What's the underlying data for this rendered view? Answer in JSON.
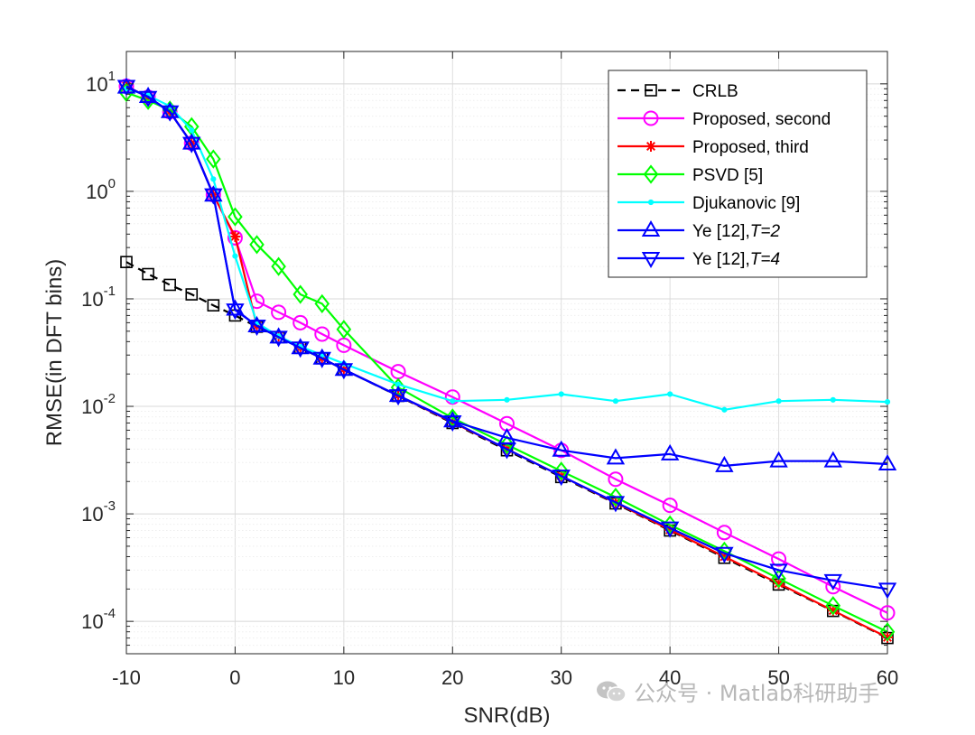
{
  "chart_data": {
    "type": "line",
    "xlabel": "SNR(dB)",
    "ylabel": "RMSE(in DFT bins)",
    "xlim": [
      -10,
      60
    ],
    "ylim": [
      5e-05,
      20
    ],
    "yscale": "log",
    "grid": true,
    "legend_position": "top-right",
    "x_ticks": [
      -10,
      0,
      10,
      20,
      30,
      40,
      50,
      60
    ],
    "x_tick_labels": [
      "-10",
      "0",
      "10",
      "20",
      "30",
      "40",
      "50",
      "60"
    ],
    "y_ticks": [
      0.0001,
      0.001,
      0.01,
      0.1,
      1,
      10
    ],
    "y_tick_labels": [
      {
        "base": "10",
        "exp": "-4"
      },
      {
        "base": "10",
        "exp": "-3"
      },
      {
        "base": "10",
        "exp": "-2"
      },
      {
        "base": "10",
        "exp": "-1"
      },
      {
        "base": "10",
        "exp": "0"
      },
      {
        "base": "10",
        "exp": "1"
      }
    ],
    "series": [
      {
        "name": "CRLB",
        "color": "#000000",
        "dash": true,
        "marker": "square",
        "x": [
          -10,
          -8,
          -6,
          -4,
          -2,
          0,
          2,
          4,
          6,
          8,
          10,
          15,
          20,
          25,
          30,
          35,
          40,
          45,
          50,
          55,
          60
        ],
        "y": [
          0.22,
          0.17,
          0.135,
          0.11,
          0.087,
          0.07,
          0.055,
          0.044,
          0.035,
          0.028,
          0.022,
          0.0125,
          0.007,
          0.0039,
          0.0022,
          0.00125,
          0.0007,
          0.00039,
          0.00022,
          0.000125,
          7e-05
        ]
      },
      {
        "name": "Proposed, second",
        "color": "#ff00ff",
        "dash": false,
        "marker": "circle",
        "x": [
          -10,
          -8,
          -6,
          -4,
          -2,
          0,
          2,
          4,
          6,
          8,
          10,
          15,
          20,
          25,
          30,
          35,
          40,
          45,
          50,
          55,
          60
        ],
        "y": [
          9.5,
          7.5,
          5.5,
          2.8,
          0.93,
          0.37,
          0.095,
          0.075,
          0.06,
          0.047,
          0.037,
          0.021,
          0.0122,
          0.0069,
          0.0039,
          0.0021,
          0.0012,
          0.00067,
          0.00038,
          0.00021,
          0.00012
        ]
      },
      {
        "name": "Proposed, third",
        "color": "#ff0000",
        "dash": false,
        "marker": "asterisk",
        "x": [
          -10,
          -8,
          -6,
          -4,
          -2,
          0,
          2,
          4,
          6,
          8,
          10,
          15,
          20,
          25,
          30,
          35,
          40,
          45,
          50,
          55,
          60
        ],
        "y": [
          9.5,
          7.5,
          5.5,
          2.8,
          0.93,
          0.38,
          0.056,
          0.045,
          0.035,
          0.028,
          0.022,
          0.0126,
          0.0071,
          0.004,
          0.00225,
          0.00127,
          0.00071,
          0.0004,
          0.000225,
          0.000126,
          7.1e-05
        ]
      },
      {
        "name": "PSVD [5]",
        "color": "#00ff00",
        "dash": false,
        "marker": "diamond",
        "x": [
          -10,
          -8,
          -6,
          -4,
          -2,
          0,
          2,
          4,
          6,
          8,
          10,
          15,
          20,
          25,
          30,
          35,
          40,
          45,
          50,
          55,
          60
        ],
        "y": [
          8.3,
          7.0,
          5.7,
          4.0,
          2.0,
          0.58,
          0.32,
          0.2,
          0.11,
          0.09,
          0.052,
          0.015,
          0.0078,
          0.0044,
          0.0025,
          0.00143,
          0.00079,
          0.00045,
          0.00025,
          0.00014,
          8e-05
        ]
      },
      {
        "name": "Djukanovic [9]",
        "color": "#00ffff",
        "dash": false,
        "marker": "point",
        "x": [
          -10,
          -8,
          -6,
          -4,
          -2,
          0,
          2,
          4,
          6,
          8,
          10,
          15,
          20,
          25,
          30,
          35,
          40,
          45,
          50,
          55,
          60
        ],
        "y": [
          9.0,
          7.8,
          6.2,
          3.7,
          1.3,
          0.25,
          0.06,
          0.045,
          0.036,
          0.03,
          0.025,
          0.016,
          0.0112,
          0.0115,
          0.013,
          0.0112,
          0.013,
          0.0093,
          0.0112,
          0.0115,
          0.011
        ]
      },
      {
        "name": "Ye [12],",
        "name_italic": "T=2",
        "color": "#0000ff",
        "dash": false,
        "marker": "triangle-up",
        "x": [
          -10,
          -8,
          -6,
          -4,
          -2,
          0,
          2,
          4,
          6,
          8,
          10,
          15,
          20,
          25,
          30,
          35,
          40,
          45,
          50,
          55,
          60
        ],
        "y": [
          9.3,
          7.6,
          5.5,
          2.8,
          0.92,
          0.08,
          0.056,
          0.044,
          0.035,
          0.028,
          0.022,
          0.0126,
          0.0073,
          0.0051,
          0.0039,
          0.0033,
          0.0036,
          0.0028,
          0.0031,
          0.0031,
          0.0029
        ]
      },
      {
        "name": "Ye [12],",
        "name_italic": "T=4",
        "color": "#0000ff",
        "dash": false,
        "marker": "triangle-down",
        "x": [
          -10,
          -8,
          -6,
          -4,
          -2,
          0,
          2,
          4,
          6,
          8,
          10,
          15,
          20,
          25,
          30,
          35,
          40,
          45,
          50,
          55,
          60
        ],
        "y": [
          9.5,
          7.5,
          5.5,
          2.8,
          0.93,
          0.079,
          0.056,
          0.044,
          0.035,
          0.028,
          0.022,
          0.0126,
          0.0072,
          0.004,
          0.00225,
          0.00128,
          0.00074,
          0.00043,
          0.0003,
          0.00024,
          0.0002
        ]
      }
    ]
  },
  "watermark": {
    "text": "公众号 · Matlab科研助手"
  }
}
